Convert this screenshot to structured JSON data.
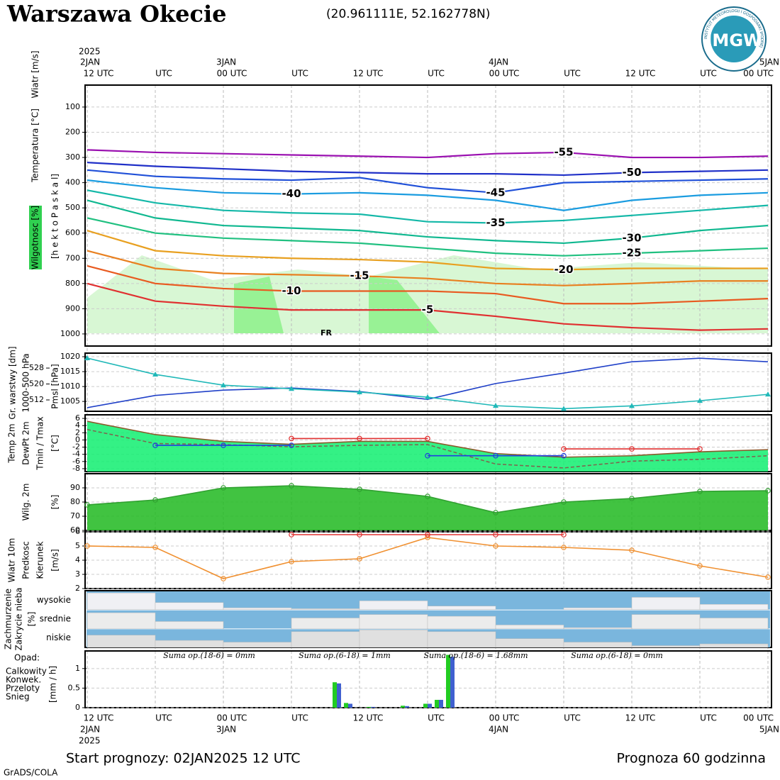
{
  "header": {
    "title": "Warszawa Okecie",
    "coords": "(20.961111E, 52.162778N)",
    "logo_text": "IMGW",
    "logo_ring": "INSTYTUT METEOROLOGII I GOSPODARKI WODNEJ",
    "start": "Start prognozy: 02JAN2025 12 UTC",
    "horizon": "Prognoza 60 godzinna",
    "credit": "GrADS/COLA"
  },
  "time_axis": {
    "xlim": [
      0,
      60
    ],
    "year": "2025",
    "dates": [
      {
        "value": 0,
        "label": "2JAN"
      },
      {
        "value": 12,
        "label": "3JAN"
      },
      {
        "value": 36,
        "label": "4JAN"
      },
      {
        "value": 60,
        "label": "5JAN"
      }
    ],
    "xticks": [
      {
        "value": 0,
        "label": "12 UTC"
      },
      {
        "value": 6,
        "label": "UTC"
      },
      {
        "value": 12,
        "label": "00 UTC"
      },
      {
        "value": 18,
        "label": "UTC"
      },
      {
        "value": 24,
        "label": "12 UTC"
      },
      {
        "value": 30,
        "label": "UTC"
      },
      {
        "value": 36,
        "label": "00 UTC"
      },
      {
        "value": 42,
        "label": "UTC"
      },
      {
        "value": 48,
        "label": "12 UTC"
      },
      {
        "value": 54,
        "label": "UTC"
      },
      {
        "value": 60,
        "label": "00 UTC"
      }
    ]
  },
  "chart_data": [
    {
      "type": "line",
      "line_labels": true,
      "axis_labels": [
        {
          "text": "Wiatr [m/s]",
          "color": "#000000"
        },
        {
          "text": "Temperatura [°C]",
          "color": "#d06060"
        },
        {
          "text": "Wilgotnosc [%]",
          "color": "#000000"
        },
        {
          "text": "[h e k t o P a s k a l]",
          "color": "#000000"
        }
      ],
      "ylim": [
        1048,
        13
      ],
      "yticks": [
        100,
        200,
        300,
        400,
        500,
        600,
        700,
        800,
        900,
        1000
      ],
      "x": [
        0,
        6,
        12,
        18,
        24,
        30,
        36,
        42,
        48,
        54,
        60
      ],
      "series": [
        {
          "name": "-55",
          "color": "#9a10b0",
          "values": [
            270,
            280,
            285,
            290,
            295,
            300,
            285,
            280,
            300,
            300,
            295
          ]
        },
        {
          "name": "-50",
          "color": "#2030c8",
          "values": [
            320,
            335,
            345,
            355,
            360,
            365,
            365,
            370,
            360,
            355,
            350
          ]
        },
        {
          "name": "-45",
          "color": "#2050d8",
          "values": [
            350,
            375,
            385,
            390,
            380,
            420,
            440,
            400,
            395,
            390,
            385
          ]
        },
        {
          "name": "-40",
          "color": "#1a9ce0",
          "values": [
            390,
            420,
            440,
            445,
            440,
            450,
            470,
            510,
            470,
            450,
            440
          ]
        },
        {
          "name": "-35",
          "color": "#14b8a8",
          "values": [
            430,
            480,
            510,
            520,
            525,
            555,
            560,
            550,
            530,
            510,
            490
          ]
        },
        {
          "name": "-30",
          "color": "#10b890",
          "values": [
            470,
            540,
            570,
            580,
            590,
            615,
            630,
            640,
            620,
            590,
            570
          ]
        },
        {
          "name": "-25",
          "color": "#20c080",
          "values": [
            540,
            600,
            620,
            630,
            640,
            660,
            680,
            690,
            680,
            670,
            660
          ]
        },
        {
          "name": "-20",
          "color": "#e8a020",
          "values": [
            590,
            670,
            690,
            700,
            705,
            715,
            740,
            745,
            740,
            740,
            740
          ]
        },
        {
          "name": "-15",
          "color": "#e88020",
          "values": [
            670,
            740,
            760,
            765,
            770,
            780,
            800,
            808,
            800,
            790,
            790
          ]
        },
        {
          "name": "-10",
          "color": "#e85a20",
          "values": [
            730,
            800,
            820,
            830,
            830,
            830,
            840,
            880,
            880,
            870,
            860
          ]
        },
        {
          "name": "-5",
          "color": "#e03030",
          "values": [
            800,
            870,
            890,
            905,
            905,
            905,
            930,
            960,
            975,
            985,
            980
          ]
        }
      ],
      "annotations": [
        "FR"
      ]
    },
    {
      "type": "line",
      "axis_labels": [
        {
          "text": "Gr. warstwy [dm]",
          "color": "#20b0b0"
        },
        {
          "text": "1000-500 hPa",
          "color": "#20b0b0"
        },
        {
          "text": "Pmsl [hPa]",
          "color": "#2040c8"
        }
      ],
      "ylim": [
        1001.7,
        1021.2
      ],
      "yticks": [
        1005,
        1010,
        1015,
        1020
      ],
      "y2lim": [
        506.3,
        535.5
      ],
      "y2ticks": [
        512,
        520,
        528
      ],
      "x": [
        0,
        6,
        12,
        18,
        24,
        30,
        36,
        42,
        48,
        54,
        60
      ],
      "series": [
        {
          "color": "#2040c8",
          "values": [
            1002.9,
            1007,
            1008.8,
            1009.5,
            1008.3,
            1005.7,
            1011,
            1014.5,
            1018.3,
            1019.5,
            1018.3
          ]
        },
        {
          "color": "#20b8b8",
          "axis": "y2",
          "markers": true,
          "values": [
            533,
            524.8,
            519.4,
            517.6,
            515.9,
            513.4,
            509.1,
            507.6,
            509,
            511.6,
            514.8
          ]
        }
      ]
    },
    {
      "type": "line",
      "axis_labels": [
        {
          "text": "Temp 2m",
          "color": "#8b4513"
        },
        {
          "text": "DewPt 2m",
          "color": "#666666"
        },
        {
          "text": "Tmin / Tmax",
          "color": "#2040c8"
        },
        {
          "text": "[°C]",
          "color": "#000000"
        }
      ],
      "ylim": [
        -8.8,
        7
      ],
      "yticks": [
        6,
        4,
        2,
        0,
        -2,
        -4,
        -6,
        -8
      ],
      "x": [
        0,
        6,
        12,
        18,
        24,
        30,
        36,
        42,
        48,
        54,
        60
      ],
      "series": [
        {
          "color": "#8b5a2b",
          "fill": "#10ee70",
          "values": [
            5.2,
            1.5,
            -0.4,
            -1.2,
            -0.4,
            -0.4,
            -3.8,
            -4.8,
            -4.4,
            -3.3,
            -2.7
          ]
        },
        {
          "color": "#7a6a50",
          "dash": true,
          "values": [
            2.9,
            -1,
            -1.3,
            -1.9,
            -1.5,
            -1.3,
            -6.7,
            -7.8,
            -5.9,
            -5.4,
            -4.4
          ]
        },
        {
          "color": "#2040e0",
          "markers": true,
          "values": [
            null,
            -1.5,
            -1.5,
            -1.5,
            null,
            -4.4,
            -4.4,
            -4.4,
            null,
            null,
            null
          ]
        },
        {
          "color": "#e03030",
          "markers": true,
          "values": [
            null,
            null,
            null,
            0.4,
            0.4,
            0.4,
            null,
            -2.5,
            -2.5,
            -2.5,
            null
          ]
        }
      ]
    },
    {
      "type": "line",
      "axis_labels": [
        {
          "text": "Wilg. 2m",
          "color": "#60d060"
        },
        {
          "text": "[%]",
          "color": "#000000"
        }
      ],
      "ylim": [
        60,
        100
      ],
      "yticks": [
        90,
        80,
        70,
        60
      ],
      "x": [
        0,
        6,
        12,
        18,
        24,
        30,
        36,
        42,
        48,
        54,
        60
      ],
      "series": [
        {
          "color": "#30a030",
          "fill": "#20b820",
          "markers": true,
          "values": [
            78,
            81.5,
            90,
            91.5,
            89,
            84,
            72.5,
            80,
            82.5,
            87.5,
            88
          ]
        }
      ]
    },
    {
      "type": "line",
      "axis_labels": [
        {
          "text": "Wiatr 10m",
          "color": "#000000"
        },
        {
          "text": "Predkosc",
          "color": "#e09020"
        },
        {
          "text": "Kierunek",
          "color": "#808080"
        },
        {
          "text": "[m/s]",
          "color": "#000000"
        }
      ],
      "ylim": [
        2,
        6
      ],
      "yticks": [
        2,
        3,
        4,
        5,
        6
      ],
      "x": [
        0,
        6,
        12,
        18,
        24,
        30,
        36,
        42,
        48,
        54,
        60
      ],
      "series": [
        {
          "color": "#f09030",
          "markers": true,
          "values": [
            5,
            4.9,
            2.7,
            3.9,
            4.1,
            5.6,
            5,
            4.9,
            4.7,
            3.6,
            2.8
          ]
        },
        {
          "color": "#e03030",
          "markers": true,
          "values": [
            null,
            null,
            null,
            5.8,
            5.8,
            5.8,
            5.8,
            5.8,
            null,
            null,
            null
          ]
        }
      ]
    },
    {
      "type": "cloud",
      "axis_labels": [
        {
          "text": "Zachmurzenie",
          "color": "#2060d0"
        },
        {
          "text": "Zakrycie nieba",
          "color": "#2060d0"
        },
        {
          "text": "[%]",
          "color": "#000000"
        }
      ],
      "ylim": [
        0,
        100
      ],
      "x": [
        0,
        6,
        12,
        18,
        24,
        30,
        36,
        42,
        48,
        54
      ],
      "series": [
        {
          "name": "wysokie",
          "color": "#f0f0f4",
          "values": [
            95,
            40,
            10,
            5,
            50,
            20,
            0,
            10,
            70,
            30
          ]
        },
        {
          "name": "srednie",
          "color": "#ececec",
          "values": [
            90,
            40,
            0,
            60,
            80,
            70,
            20,
            5,
            80,
            60
          ]
        },
        {
          "name": "niskie",
          "color": "#e0e0e0",
          "values": [
            70,
            40,
            30,
            90,
            100,
            90,
            50,
            30,
            10,
            20
          ]
        }
      ]
    },
    {
      "type": "bar",
      "title": "Opad:",
      "axis_labels": [
        {
          "text": "[mm / h]",
          "color": "#000000"
        }
      ],
      "ylim": [
        0,
        1.45
      ],
      "yticks": [
        0,
        0.5,
        1
      ],
      "x": [
        22,
        23,
        25,
        28,
        30,
        31,
        32
      ],
      "series": [
        {
          "name": "Calkowity",
          "color": "#22cc22",
          "values": [
            0.65,
            0.12,
            0.02,
            0.05,
            0.1,
            0.2,
            1.35
          ]
        },
        {
          "name": "Konwek.",
          "color": "#e03030",
          "values": [
            0,
            0,
            0,
            0,
            0,
            0,
            0
          ]
        },
        {
          "name": "Przeloty",
          "color": "#e08030",
          "values": [
            0,
            0,
            0,
            0,
            0,
            0,
            0
          ]
        },
        {
          "name": "Snieg",
          "color": "#4060d0",
          "values": [
            0.62,
            0.1,
            0.02,
            0.04,
            0.1,
            0.2,
            1.3
          ]
        }
      ],
      "annotations": [
        "Suma op.(18-6) = 0mm",
        "Suma op.(6-18) = 1mm",
        "Suma op.(18-6) = 1.68mm",
        "Suma op.(6-18) = 0mm"
      ]
    }
  ]
}
